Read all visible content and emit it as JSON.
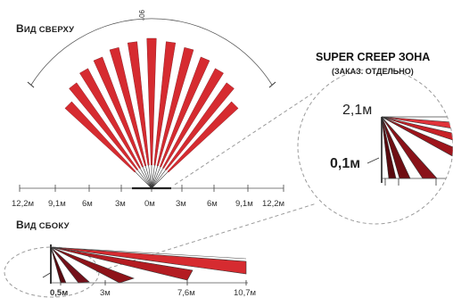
{
  "top_view": {
    "title_cap": "В",
    "title_rest": "ид сверху",
    "angle_label": "90°",
    "ticks": [
      "12,2м",
      "9,1м",
      "6м",
      "3м",
      "0м",
      "3м",
      "6м",
      "9,1м",
      "12,2м"
    ]
  },
  "side_view": {
    "title_cap": "В",
    "title_rest": "ид сбоку",
    "ticks": [
      "0,5м",
      "3м",
      "7,6м",
      "10,7м"
    ]
  },
  "creep_zone": {
    "title": "SUPER CREEP ЗОНА",
    "subtitle": "(ЗАКАЗ. ОТДЕЛЬНО)",
    "height_top": "2,1м",
    "height_bottom": "0,1м"
  },
  "colors": {
    "beam_red": "#d62b30",
    "beam_dark": "#7a1016",
    "beam_mid": "#a8181f",
    "outline": "#333333",
    "dashed": "#9a9a9a"
  }
}
